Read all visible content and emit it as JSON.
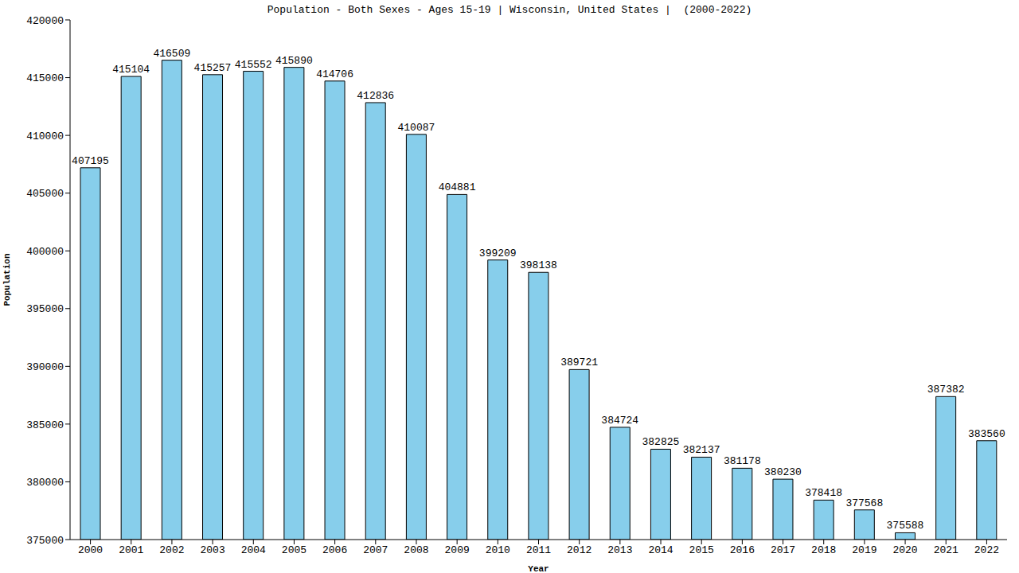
{
  "chart_data": {
    "type": "bar",
    "title": "Population - Both Sexes - Ages 15-19 | Wisconsin, United States |  (2000-2022)",
    "x_label": "Year",
    "y_label": "Population",
    "categories": [
      "2000",
      "2001",
      "2002",
      "2003",
      "2004",
      "2005",
      "2006",
      "2007",
      "2008",
      "2009",
      "2010",
      "2011",
      "2012",
      "2013",
      "2014",
      "2015",
      "2016",
      "2017",
      "2018",
      "2019",
      "2020",
      "2021",
      "2022"
    ],
    "values": [
      407195,
      415104,
      416509,
      415257,
      415552,
      415890,
      414706,
      412836,
      410087,
      404881,
      399209,
      398138,
      389721,
      384724,
      382825,
      382137,
      381178,
      380230,
      378418,
      377568,
      375588,
      387382,
      383560
    ],
    "color": "#87ceeb",
    "ylim": [
      375000,
      420000
    ],
    "yticks": [
      375000,
      380000,
      385000,
      390000,
      395000,
      400000,
      405000,
      410000,
      415000,
      420000
    ],
    "grid": false,
    "data_labels": true
  }
}
